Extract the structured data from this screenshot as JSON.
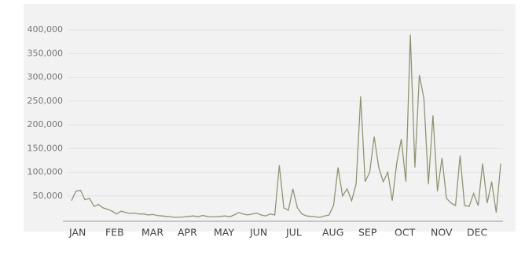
{
  "chart_data": {
    "type": "line",
    "categories": [
      "JAN",
      null,
      null,
      null,
      null,
      null,
      null,
      null,
      "FEB",
      null,
      null,
      null,
      null,
      null,
      null,
      null,
      "MAR",
      null,
      null,
      null,
      null,
      null,
      null,
      null,
      "APR",
      null,
      null,
      null,
      null,
      null,
      null,
      null,
      "MAY",
      null,
      null,
      null,
      null,
      null,
      null,
      null,
      "JUN",
      null,
      null,
      null,
      null,
      null,
      null,
      null,
      "JUL",
      null,
      null,
      null,
      null,
      null,
      null,
      null,
      "AUG",
      null,
      null,
      null,
      null,
      null,
      null,
      null,
      "SEP",
      null,
      null,
      null,
      null,
      null,
      null,
      null,
      "OCT",
      null,
      null,
      null,
      null,
      null,
      null,
      null,
      "NOV",
      null,
      null,
      null,
      null,
      null,
      null,
      null,
      "DEC",
      null,
      null,
      null,
      null,
      null,
      null,
      null
    ],
    "series": [
      {
        "color": "#8f9474",
        "values": [
          40000,
          60000,
          62000,
          42000,
          45000,
          28000,
          32000,
          25000,
          22000,
          18000,
          12000,
          18000,
          15000,
          13000,
          14000,
          12000,
          12000,
          10000,
          11000,
          9000,
          8000,
          7000,
          6000,
          5000,
          5000,
          6000,
          7000,
          8000,
          6000,
          9000,
          7000,
          6000,
          6000,
          7000,
          8000,
          6000,
          10000,
          15000,
          12000,
          10000,
          12000,
          14000,
          10000,
          8000,
          12000,
          10000,
          115000,
          25000,
          20000,
          65000,
          25000,
          12000,
          8000,
          7000,
          6000,
          5000,
          8000,
          10000,
          30000,
          110000,
          50000,
          65000,
          40000,
          75000,
          260000,
          80000,
          100000,
          175000,
          110000,
          80000,
          100000,
          40000,
          120000,
          170000,
          80000,
          390000,
          110000,
          305000,
          255000,
          75000,
          220000,
          60000,
          130000,
          45000,
          35000,
          30000,
          135000,
          30000,
          28000,
          55000,
          30000,
          118000,
          35000,
          80000,
          15000,
          118000
        ]
      }
    ],
    "ylim": [
      0,
      420000
    ],
    "yticks": [
      {
        "value": 50000,
        "label": "50,000"
      },
      {
        "value": 100000,
        "label": "100,000"
      },
      {
        "value": 150000,
        "label": "150,000"
      },
      {
        "value": 200000,
        "label": "200,000"
      },
      {
        "value": 250000,
        "label": "250,000"
      },
      {
        "value": 300000,
        "label": "300,000"
      },
      {
        "value": 350000,
        "label": "350,000"
      },
      {
        "value": 400000,
        "label": "400,000"
      }
    ],
    "grid": true
  }
}
